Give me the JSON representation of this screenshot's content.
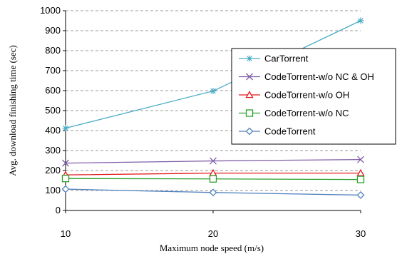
{
  "chart_data": {
    "type": "line",
    "x": [
      10,
      20,
      30
    ],
    "xlabel": "Maximum node speed (m/s)",
    "ylabel": "Avg. download finishing time (sec)",
    "xlim": [
      10,
      30
    ],
    "ylim": [
      0,
      1000
    ],
    "yticks": [
      "0",
      "100",
      "200",
      "300",
      "400",
      "500",
      "600",
      "700",
      "800",
      "900",
      "1000"
    ],
    "xticks": [
      "10",
      "20",
      "30"
    ],
    "grid": "horizontal dashed",
    "legend_position": "right",
    "series": [
      {
        "name": "CarTorrent",
        "values": [
          412,
          598,
          950
        ],
        "color": "#4bacc6",
        "marker": "star"
      },
      {
        "name": "CodeTorrent-w/o NC & OH",
        "values": [
          237,
          248,
          255
        ],
        "color": "#7f5fa8",
        "marker": "x"
      },
      {
        "name": "CodeTorrent-w/o OH",
        "values": [
          178,
          187,
          187
        ],
        "color": "#e41a1c",
        "marker": "triangle"
      },
      {
        "name": "CodeTorrent-w/o NC",
        "values": [
          160,
          158,
          155
        ],
        "color": "#2ca02c",
        "marker": "square"
      },
      {
        "name": "CodeTorrent",
        "values": [
          107,
          90,
          77
        ],
        "color": "#4f81bd",
        "marker": "diamond"
      }
    ]
  }
}
